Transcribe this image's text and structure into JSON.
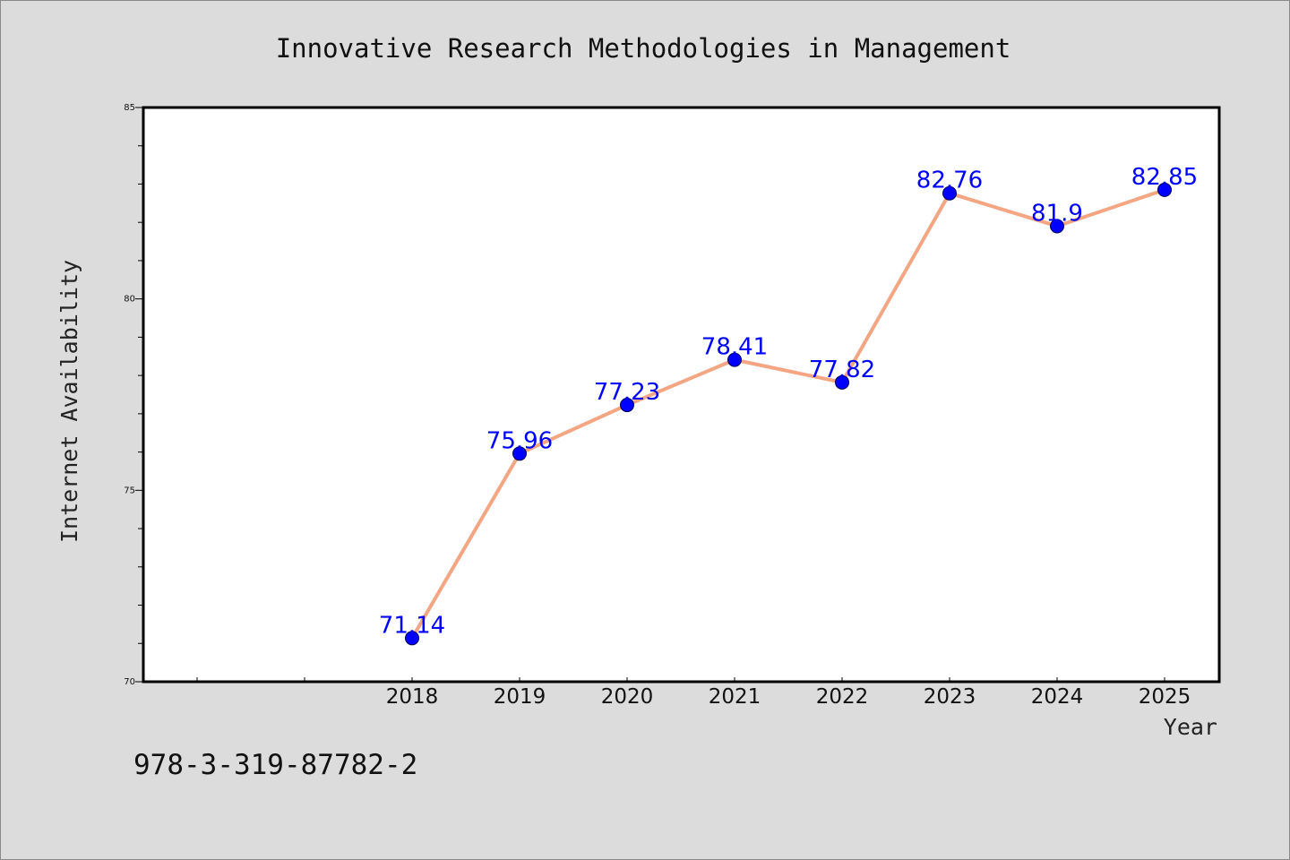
{
  "caption": "978-3-319-87782-2",
  "colors": {
    "background": "#dcdcdc",
    "plot_background": "#ffffff",
    "line": "#f4a582",
    "marker": "#0000ff",
    "data_label": "#0000ff"
  },
  "chart_data": {
    "type": "line",
    "title": "Innovative Research Methodologies in Management",
    "xlabel": "Year",
    "ylabel": "Internet Availability",
    "categories": [
      "",
      "",
      "2018",
      "2019",
      "2020",
      "2021",
      "2022",
      "2023",
      "2024",
      "2025"
    ],
    "x": [
      "2018",
      "2019",
      "2020",
      "2021",
      "2022",
      "2023",
      "2024",
      "2025"
    ],
    "series": [
      {
        "values": [
          71.14,
          75.96,
          77.23,
          78.41,
          77.82,
          82.76,
          81.9,
          82.85
        ],
        "labels": [
          "71.14",
          "75.96",
          "77.23",
          "78.41",
          "77.82",
          "82.76",
          "81.9",
          "82.85"
        ]
      }
    ],
    "ylim": [
      70,
      85
    ],
    "yticks": [
      "70",
      "75",
      "80",
      "85"
    ],
    "grid": false,
    "legend": "none"
  }
}
